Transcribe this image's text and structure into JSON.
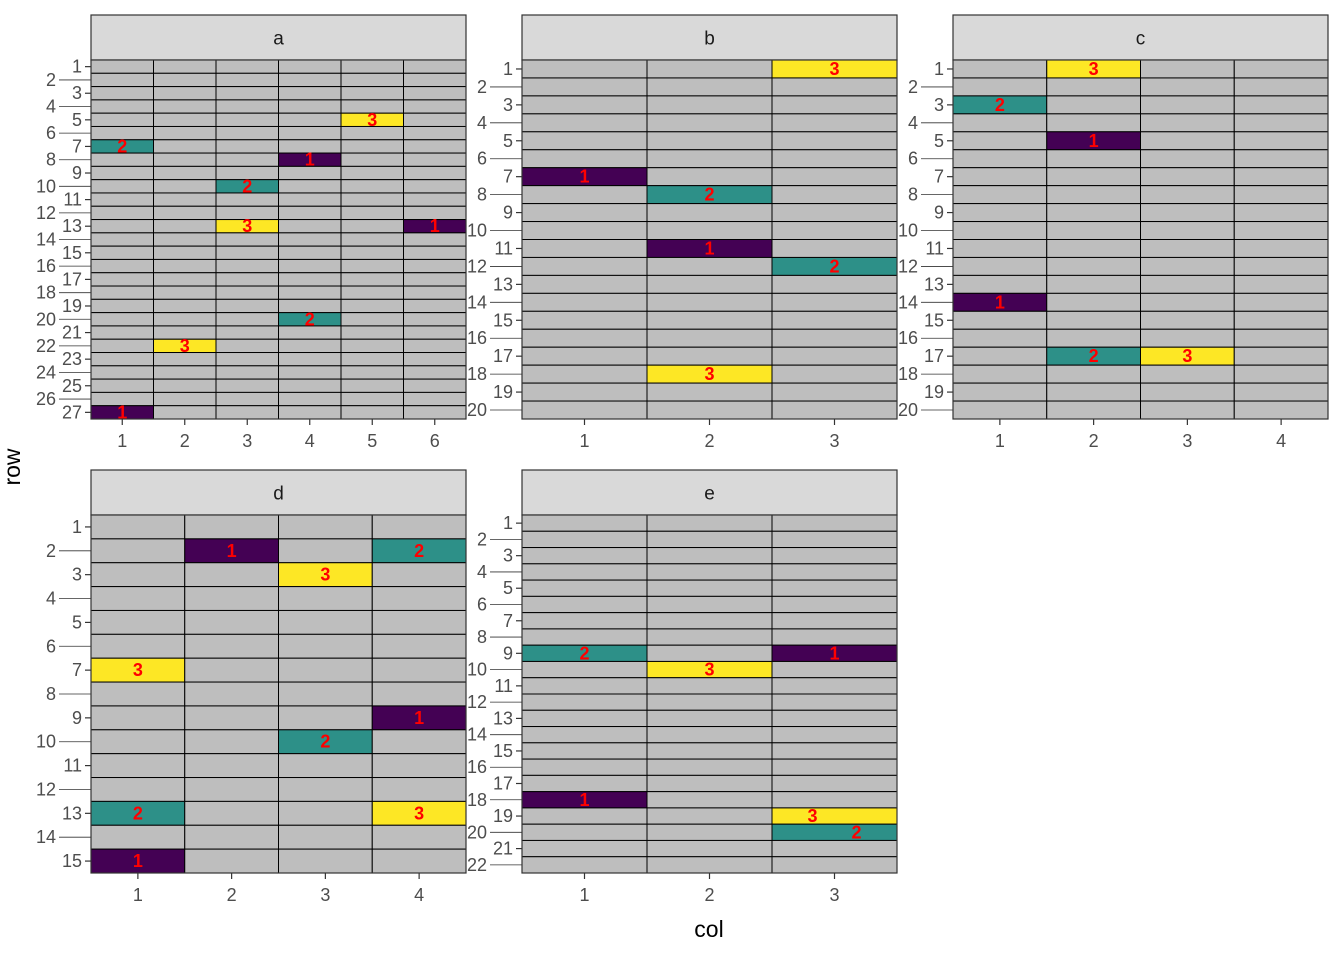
{
  "chart_data": {
    "type": "heatmap",
    "xlabel": "col",
    "ylabel": "row",
    "y_reversed": true,
    "grid": false,
    "legend": "none",
    "colors": {
      "1": "#440154",
      "2": "#2D9088",
      "3": "#FDE725",
      "empty": "#BEBEBE",
      "label": "#FF0000",
      "strip": "#D9D9D9"
    },
    "panels": [
      {
        "name": "a",
        "ncol": 6,
        "nrow": 27,
        "tiles": [
          {
            "row": 5,
            "col": 5,
            "value": 3
          },
          {
            "row": 7,
            "col": 1,
            "value": 2
          },
          {
            "row": 8,
            "col": 4,
            "value": 1
          },
          {
            "row": 10,
            "col": 3,
            "value": 2
          },
          {
            "row": 13,
            "col": 3,
            "value": 3
          },
          {
            "row": 13,
            "col": 6,
            "value": 1
          },
          {
            "row": 20,
            "col": 4,
            "value": 2
          },
          {
            "row": 22,
            "col": 2,
            "value": 3
          },
          {
            "row": 27,
            "col": 1,
            "value": 1
          }
        ]
      },
      {
        "name": "b",
        "ncol": 3,
        "nrow": 20,
        "tiles": [
          {
            "row": 1,
            "col": 3,
            "value": 3
          },
          {
            "row": 7,
            "col": 1,
            "value": 1
          },
          {
            "row": 8,
            "col": 2,
            "value": 2
          },
          {
            "row": 11,
            "col": 2,
            "value": 1
          },
          {
            "row": 12,
            "col": 3,
            "value": 2
          },
          {
            "row": 18,
            "col": 2,
            "value": 3
          }
        ]
      },
      {
        "name": "c",
        "ncol": 4,
        "nrow": 20,
        "tiles": [
          {
            "row": 1,
            "col": 2,
            "value": 3
          },
          {
            "row": 3,
            "col": 1,
            "value": 2
          },
          {
            "row": 5,
            "col": 2,
            "value": 1
          },
          {
            "row": 14,
            "col": 1,
            "value": 1
          },
          {
            "row": 17,
            "col": 2,
            "value": 2
          },
          {
            "row": 17,
            "col": 3,
            "value": 3
          }
        ]
      },
      {
        "name": "d",
        "ncol": 4,
        "nrow": 15,
        "tiles": [
          {
            "row": 2,
            "col": 2,
            "value": 1
          },
          {
            "row": 2,
            "col": 4,
            "value": 2
          },
          {
            "row": 3,
            "col": 3,
            "value": 3
          },
          {
            "row": 7,
            "col": 1,
            "value": 3
          },
          {
            "row": 9,
            "col": 4,
            "value": 1
          },
          {
            "row": 10,
            "col": 3,
            "value": 2
          },
          {
            "row": 13,
            "col": 1,
            "value": 2
          },
          {
            "row": 13,
            "col": 4,
            "value": 3
          },
          {
            "row": 15,
            "col": 1,
            "value": 1
          }
        ]
      },
      {
        "name": "e",
        "ncol": 3,
        "nrow": 22,
        "tiles": [
          {
            "row": 9,
            "col": 1,
            "value": 2
          },
          {
            "row": 9,
            "col": 3,
            "value": 1
          },
          {
            "row": 10,
            "col": 2,
            "value": 3
          },
          {
            "row": 18,
            "col": 1,
            "value": 1
          },
          {
            "row": 19,
            "col": 3,
            "value": 3
          },
          {
            "row": 20,
            "col": 3,
            "value": 2
          }
        ]
      }
    ]
  }
}
